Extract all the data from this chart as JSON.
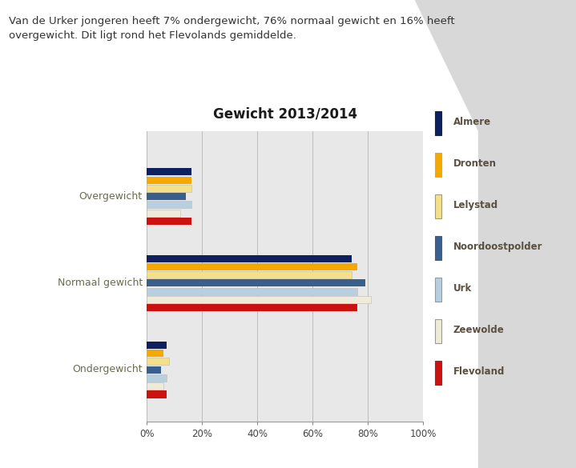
{
  "title": "Gewicht 2013/2014",
  "categories": [
    "Overgewicht",
    "Normaal gewicht",
    "Ondergewicht"
  ],
  "series": [
    {
      "label": "Almere",
      "color": "#0d2060",
      "values": [
        16,
        74,
        7
      ]
    },
    {
      "label": "Dronten",
      "color": "#f5a800",
      "values": [
        16,
        76,
        6
      ]
    },
    {
      "label": "Lelystad",
      "color": "#f5e08a",
      "values": [
        16,
        74,
        8
      ]
    },
    {
      "label": "Noordoostpolder",
      "color": "#3a5f8c",
      "values": [
        14,
        79,
        5
      ]
    },
    {
      "label": "Urk",
      "color": "#b8cfe0",
      "values": [
        16,
        76,
        7
      ]
    },
    {
      "label": "Zeewolde",
      "color": "#f0ead8",
      "values": [
        12,
        81,
        6
      ]
    },
    {
      "label": "Flevoland",
      "color": "#cc1111",
      "values": [
        16,
        76,
        7
      ]
    }
  ],
  "xlim": [
    0,
    100
  ],
  "xticks": [
    0,
    20,
    40,
    60,
    80,
    100
  ],
  "xticklabels": [
    "0%",
    "20%",
    "40%",
    "60%",
    "80%",
    "100%"
  ],
  "bg_left_color": "#ffffff",
  "bg_right_color": "#e0e0e0",
  "plot_bg_color": "#e8e8e8",
  "text_color": "#6b6b4f",
  "header_text_line1": "Van de Urker jongeren heeft 7% ondergewicht, 76% normaal gewicht en 16% heeft",
  "header_text_line2": "overgewicht. Dit ligt rond het Flevolands gemiddelde.",
  "title_fontsize": 12,
  "bar_height": 0.095,
  "legend_text_color": "#5a5040"
}
